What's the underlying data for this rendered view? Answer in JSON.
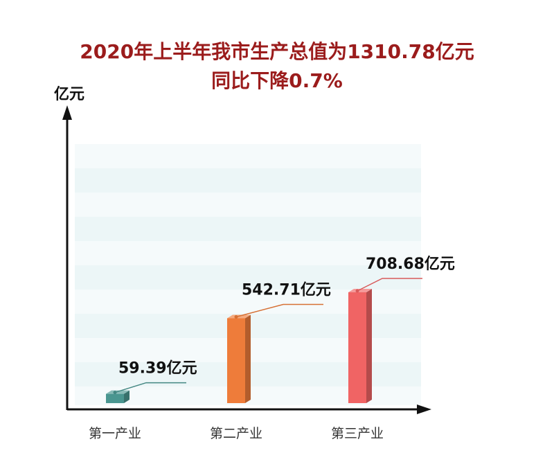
{
  "title_line1": "2020年上半年我市生产总值为1310.78亿元",
  "title_line2": "同比下降0.7%",
  "chart_data": {
    "type": "bar",
    "title": "2020年上半年我市生产总值为1310.78亿元 同比下降0.7%",
    "ylabel": "亿元",
    "categories": [
      "第一产业",
      "第二产业",
      "第三产业"
    ],
    "values": [
      59.39,
      542.71,
      708.68
    ],
    "data_labels": [
      "59.39亿元",
      "542.71亿元",
      "708.68亿元"
    ],
    "colors": [
      "#4a9690",
      "#ee7c3a",
      "#f06464"
    ],
    "grid": true,
    "legend": "none"
  }
}
